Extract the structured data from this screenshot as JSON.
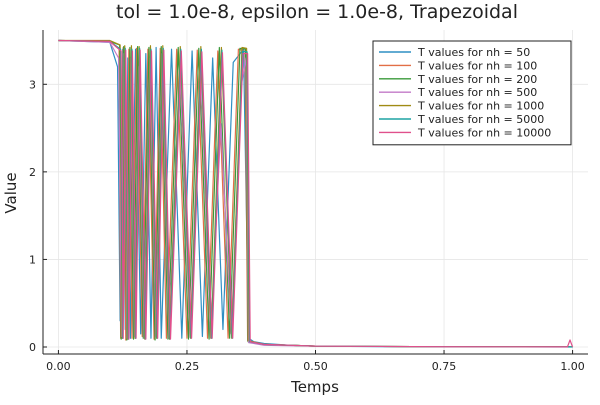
{
  "chart_data": {
    "type": "line",
    "title": "tol = 1.0e-8, epsilon = 1.0e-8, Trapezoidal",
    "xlabel": "Temps",
    "ylabel": "Value",
    "xlim": [
      -0.03,
      1.03
    ],
    "ylim": [
      -0.08,
      3.62
    ],
    "x_ticks": [
      0.0,
      0.25,
      0.5,
      0.75,
      1.0
    ],
    "x_tick_labels": [
      "0.00",
      "0.25",
      "0.50",
      "0.75",
      "1.00"
    ],
    "y_ticks": [
      0,
      1,
      2,
      3
    ],
    "y_tick_labels": [
      "0",
      "1",
      "2",
      "3"
    ],
    "grid": true,
    "legend_position": "top-right",
    "series": [
      {
        "name": "T values for nh = 50",
        "color": "#2f8fc4",
        "x": [
          0,
          0.1,
          0.115,
          0.12,
          0.125,
          0.13,
          0.135,
          0.14,
          0.15,
          0.16,
          0.17,
          0.18,
          0.19,
          0.2,
          0.22,
          0.24,
          0.26,
          0.28,
          0.3,
          0.32,
          0.34,
          0.36,
          0.37,
          0.38,
          0.4,
          0.45,
          0.5,
          0.6,
          0.7,
          0.8,
          0.9,
          1.0
        ],
        "y": [
          3.5,
          3.48,
          3.2,
          0.3,
          3.4,
          0.2,
          3.3,
          0.1,
          3.4,
          0.15,
          3.35,
          0.1,
          3.42,
          0.1,
          3.4,
          0.1,
          3.38,
          0.12,
          3.3,
          0.2,
          3.25,
          3.4,
          0.1,
          0.06,
          0.04,
          0.02,
          0.01,
          0.005,
          0.003,
          0.002,
          0.001,
          0.0
        ]
      },
      {
        "name": "T values for nh = 100",
        "color": "#e26f46",
        "x": [
          0,
          0.1,
          0.118,
          0.121,
          0.126,
          0.131,
          0.137,
          0.143,
          0.152,
          0.163,
          0.174,
          0.186,
          0.198,
          0.21,
          0.23,
          0.25,
          0.27,
          0.29,
          0.31,
          0.33,
          0.35,
          0.363,
          0.368,
          0.4,
          0.5,
          0.75,
          1.0
        ],
        "y": [
          3.5,
          3.49,
          3.4,
          0.1,
          3.42,
          0.08,
          3.4,
          0.1,
          3.41,
          0.12,
          3.4,
          0.09,
          3.41,
          0.1,
          3.4,
          0.1,
          3.39,
          0.1,
          3.38,
          0.1,
          3.4,
          3.38,
          0.07,
          0.03,
          0.01,
          0.003,
          0.001
        ]
      },
      {
        "name": "T values for nh = 200",
        "color": "#3a9a3a",
        "x": [
          0,
          0.1,
          0.119,
          0.122,
          0.127,
          0.133,
          0.139,
          0.146,
          0.154,
          0.165,
          0.176,
          0.188,
          0.2,
          0.213,
          0.233,
          0.253,
          0.273,
          0.293,
          0.313,
          0.333,
          0.353,
          0.364,
          0.369,
          0.4,
          0.5,
          0.75,
          1.0
        ],
        "y": [
          3.5,
          3.49,
          3.45,
          0.09,
          3.43,
          0.08,
          3.42,
          0.09,
          3.43,
          0.1,
          3.42,
          0.08,
          3.43,
          0.09,
          3.42,
          0.09,
          3.41,
          0.09,
          3.42,
          0.1,
          3.41,
          3.4,
          0.06,
          0.03,
          0.01,
          0.003,
          0.001
        ]
      },
      {
        "name": "T values for nh = 500",
        "color": "#c27ac7",
        "x": [
          0,
          0.1,
          0.117,
          0.123,
          0.128,
          0.134,
          0.141,
          0.148,
          0.156,
          0.167,
          0.178,
          0.19,
          0.202,
          0.215,
          0.236,
          0.256,
          0.276,
          0.296,
          0.316,
          0.336,
          0.356,
          0.365,
          0.37,
          0.4,
          0.5,
          0.75,
          1.0
        ],
        "y": [
          3.5,
          3.48,
          3.3,
          0.12,
          3.35,
          0.1,
          3.3,
          0.12,
          3.2,
          0.1,
          3.3,
          0.12,
          3.35,
          0.1,
          3.25,
          0.11,
          3.3,
          0.1,
          2.55,
          0.15,
          3.0,
          3.3,
          0.05,
          0.02,
          0.01,
          0.003,
          0.001
        ]
      },
      {
        "name": "T values for nh = 1000",
        "color": "#a08b14",
        "x": [
          0,
          0.1,
          0.12,
          0.124,
          0.129,
          0.135,
          0.142,
          0.149,
          0.157,
          0.168,
          0.179,
          0.191,
          0.203,
          0.216,
          0.237,
          0.257,
          0.277,
          0.297,
          0.317,
          0.337,
          0.357,
          0.366,
          0.371,
          0.4,
          0.5,
          0.75,
          1.0
        ],
        "y": [
          3.5,
          3.5,
          3.45,
          0.1,
          3.44,
          0.09,
          3.44,
          0.1,
          3.43,
          0.09,
          3.44,
          0.1,
          3.44,
          0.09,
          3.43,
          0.1,
          3.43,
          0.1,
          3.42,
          0.1,
          3.42,
          3.41,
          0.07,
          0.03,
          0.01,
          0.003,
          0.001
        ]
      },
      {
        "name": "T values for nh = 5000",
        "color": "#1ea3a3",
        "x": [
          0,
          0.1,
          0.121,
          0.125,
          0.13,
          0.136,
          0.143,
          0.15,
          0.158,
          0.169,
          0.18,
          0.192,
          0.204,
          0.217,
          0.238,
          0.258,
          0.278,
          0.298,
          0.318,
          0.338,
          0.358,
          0.367,
          0.372,
          0.4,
          0.5,
          0.75,
          1.0
        ],
        "y": [
          3.5,
          3.49,
          3.4,
          0.1,
          3.41,
          0.09,
          3.4,
          0.1,
          3.41,
          0.09,
          3.4,
          0.1,
          3.41,
          0.09,
          3.4,
          0.1,
          3.4,
          0.1,
          3.39,
          0.1,
          3.38,
          3.37,
          0.06,
          0.03,
          0.01,
          0.003,
          0.001
        ]
      },
      {
        "name": "T values for nh = 10000",
        "color": "#e0508c",
        "x": [
          0,
          0.1,
          0.122,
          0.126,
          0.131,
          0.137,
          0.144,
          0.151,
          0.159,
          0.17,
          0.181,
          0.193,
          0.205,
          0.218,
          0.239,
          0.259,
          0.279,
          0.299,
          0.319,
          0.339,
          0.359,
          0.368,
          0.373,
          0.4,
          0.5,
          0.75,
          0.99,
          0.995,
          1.0
        ],
        "y": [
          3.5,
          3.49,
          3.38,
          0.1,
          3.39,
          0.09,
          3.38,
          0.1,
          3.39,
          0.09,
          3.38,
          0.1,
          3.39,
          0.09,
          3.38,
          0.1,
          3.37,
          0.1,
          3.36,
          0.1,
          3.35,
          3.35,
          0.06,
          0.03,
          0.01,
          0.003,
          0.001,
          0.08,
          0.001
        ]
      }
    ]
  }
}
